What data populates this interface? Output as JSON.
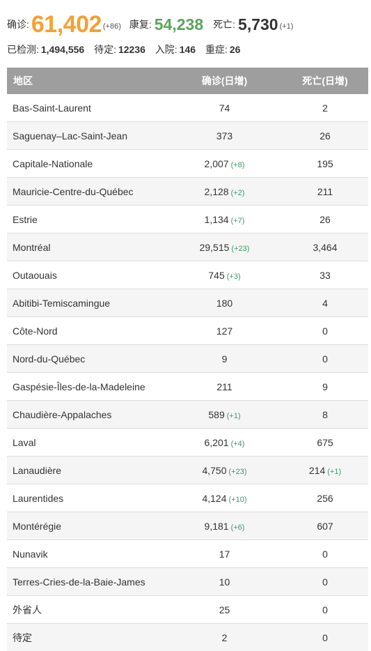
{
  "summary": {
    "confirmed_label": "确诊:",
    "confirmed_value": "61,402",
    "confirmed_delta": "(+86)",
    "recovered_label": "康复:",
    "recovered_value": "54,238",
    "deaths_label": "死亡:",
    "deaths_value": "5,730",
    "deaths_delta": "(+1)",
    "tested_label": "已检测:",
    "tested_value": "1,494,556",
    "pending_label": "待定:",
    "pending_value": "12236",
    "hospitalized_label": "入院:",
    "hospitalized_value": "146",
    "icu_label": "重症:",
    "icu_value": "26"
  },
  "table": {
    "headers": {
      "region": "地区",
      "confirmed": "确诊(日增)",
      "deaths": "死亡(日增)"
    },
    "rows": [
      {
        "region": "Bas-Saint-Laurent",
        "confirmed": "74",
        "confirmed_inc": "",
        "deaths": "2",
        "deaths_inc": ""
      },
      {
        "region": "Saguenay–Lac-Saint-Jean",
        "confirmed": "373",
        "confirmed_inc": "",
        "deaths": "26",
        "deaths_inc": ""
      },
      {
        "region": "Capitale-Nationale",
        "confirmed": "2,007",
        "confirmed_inc": "(+8)",
        "deaths": "195",
        "deaths_inc": ""
      },
      {
        "region": "Mauricie-Centre-du-Québec",
        "confirmed": "2,128",
        "confirmed_inc": "(+2)",
        "deaths": "211",
        "deaths_inc": ""
      },
      {
        "region": "Estrie",
        "confirmed": "1,134",
        "confirmed_inc": "(+7)",
        "deaths": "26",
        "deaths_inc": ""
      },
      {
        "region": "Montréal",
        "confirmed": "29,515",
        "confirmed_inc": "(+23)",
        "deaths": "3,464",
        "deaths_inc": ""
      },
      {
        "region": "Outaouais",
        "confirmed": "745",
        "confirmed_inc": "(+3)",
        "deaths": "33",
        "deaths_inc": ""
      },
      {
        "region": "Abitibi-Temiscamingue",
        "confirmed": "180",
        "confirmed_inc": "",
        "deaths": "4",
        "deaths_inc": ""
      },
      {
        "region": "Côte-Nord",
        "confirmed": "127",
        "confirmed_inc": "",
        "deaths": "0",
        "deaths_inc": ""
      },
      {
        "region": "Nord-du-Québec",
        "confirmed": "9",
        "confirmed_inc": "",
        "deaths": "0",
        "deaths_inc": ""
      },
      {
        "region": "Gaspésie-Îles-de-la-Madeleine",
        "confirmed": "211",
        "confirmed_inc": "",
        "deaths": "9",
        "deaths_inc": ""
      },
      {
        "region": "Chaudière-Appalaches",
        "confirmed": "589",
        "confirmed_inc": "(+1)",
        "deaths": "8",
        "deaths_inc": ""
      },
      {
        "region": "Laval",
        "confirmed": "6,201",
        "confirmed_inc": "(+4)",
        "deaths": "675",
        "deaths_inc": ""
      },
      {
        "region": "Lanaudière",
        "confirmed": "4,750",
        "confirmed_inc": "(+23)",
        "deaths": "214",
        "deaths_inc": "(+1)"
      },
      {
        "region": "Laurentides",
        "confirmed": "4,124",
        "confirmed_inc": "(+10)",
        "deaths": "256",
        "deaths_inc": ""
      },
      {
        "region": "Montérégie",
        "confirmed": "9,181",
        "confirmed_inc": "(+6)",
        "deaths": "607",
        "deaths_inc": ""
      },
      {
        "region": "Nunavik",
        "confirmed": "17",
        "confirmed_inc": "",
        "deaths": "0",
        "deaths_inc": ""
      },
      {
        "region": "Terres-Cries-de-la-Baie-James",
        "confirmed": "10",
        "confirmed_inc": "",
        "deaths": "0",
        "deaths_inc": ""
      },
      {
        "region": "外省人",
        "confirmed": "25",
        "confirmed_inc": "",
        "deaths": "0",
        "deaths_inc": ""
      },
      {
        "region": "待定",
        "confirmed": "2",
        "confirmed_inc": "",
        "deaths": "0",
        "deaths_inc": ""
      }
    ]
  },
  "colors": {
    "confirmed": "#f5a030",
    "recovered": "#5aa55a",
    "increase": "#3a9a6a",
    "header_bg": "#9e9e9e",
    "alt_row_bg": "#f5f5f5"
  }
}
